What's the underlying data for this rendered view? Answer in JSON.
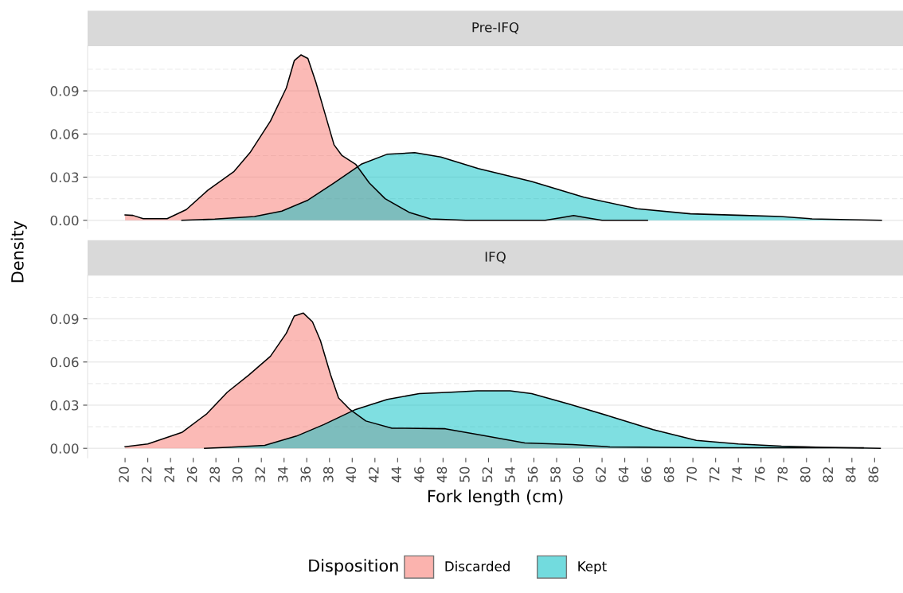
{
  "chart_data": [
    {
      "type": "area",
      "title": "Pre-IFQ",
      "ylabel": "Density",
      "legend_title": "Disposition",
      "legend": "bottom",
      "xlim": [
        16.7,
        88.5
      ],
      "ylim": [
        -0.0056,
        0.121
      ],
      "yticks": [
        {
          "value": 0,
          "label": "0.00"
        },
        {
          "value": 0.03,
          "label": "0.03"
        },
        {
          "value": 0.06,
          "label": "0.06"
        },
        {
          "value": 0.09,
          "label": "0.09"
        }
      ],
      "grid": "y",
      "tick_labels": "y",
      "series": [
        {
          "name": "Discarded",
          "color": "#f8766d",
          "x": [
            20,
            20.7,
            21.6,
            23.7,
            25.4,
            27.3,
            29.6,
            31,
            32.8,
            34.2,
            34.9,
            35.5,
            36.1,
            36.8,
            37.5,
            38.4,
            39.1,
            40.3,
            41.5,
            42.9,
            45,
            46.9,
            50,
            57,
            58.5,
            59.5,
            60.5,
            62,
            66
          ],
          "values": [
            0.0037,
            0.0034,
            0.0011,
            0.0011,
            0.0075,
            0.021,
            0.034,
            0.047,
            0.069,
            0.092,
            0.111,
            0.115,
            0.1125,
            0.096,
            0.077,
            0.0525,
            0.045,
            0.039,
            0.026,
            0.015,
            0.0056,
            0.001,
            0,
            0,
            0.002,
            0.0033,
            0.002,
            0,
            0
          ]
        },
        {
          "name": "Kept",
          "color": "#00bfc4",
          "x": [
            25,
            27.9,
            31.4,
            33.8,
            36.1,
            38.4,
            40.8,
            43.1,
            45.5,
            47.8,
            51.1,
            55.8,
            60.4,
            65.1,
            69.8,
            74.5,
            77.7,
            80.5,
            83.8,
            86.6
          ],
          "values": [
            0,
            0.0008,
            0.0026,
            0.0064,
            0.014,
            0.026,
            0.039,
            0.046,
            0.047,
            0.044,
            0.036,
            0.027,
            0.016,
            0.008,
            0.0045,
            0.0034,
            0.0026,
            0.001,
            0.0004,
            0
          ]
        }
      ]
    },
    {
      "type": "area",
      "title": "IFQ",
      "xlabel": "Fork length (cm)",
      "xlim": [
        16.7,
        88.5
      ],
      "ylim": [
        -0.0066,
        0.12
      ],
      "xticks": [
        20,
        22,
        24,
        26,
        28,
        30,
        32,
        34,
        36,
        38,
        40,
        42,
        44,
        46,
        48,
        50,
        52,
        54,
        56,
        58,
        60,
        62,
        64,
        66,
        68,
        70,
        72,
        74,
        76,
        78,
        80,
        82,
        84,
        86
      ],
      "yticks": [
        {
          "value": 0,
          "label": "0.00"
        },
        {
          "value": 0.03,
          "label": "0.03"
        },
        {
          "value": 0.06,
          "label": "0.06"
        },
        {
          "value": 0.09,
          "label": "0.09"
        }
      ],
      "grid": "y",
      "series": [
        {
          "color": "#f8766d",
          "x": [
            20,
            22,
            25,
            27.2,
            29,
            30.9,
            32.8,
            34.2,
            34.9,
            35.7,
            36.5,
            37.2,
            38.1,
            38.8,
            39.8,
            41.2,
            43.5,
            48.2,
            51.5,
            55.2,
            59.4,
            62.7,
            72,
            85
          ],
          "values": [
            0.0011,
            0.003,
            0.011,
            0.024,
            0.039,
            0.051,
            0.064,
            0.08,
            0.092,
            0.094,
            0.088,
            0.075,
            0.051,
            0.035,
            0.027,
            0.019,
            0.014,
            0.0136,
            0.009,
            0.0037,
            0.0026,
            0.001,
            0.0004,
            0.0004
          ]
        },
        {
          "color": "#00bfc4",
          "x": [
            27,
            29,
            32.3,
            35.1,
            37.5,
            40.3,
            43.1,
            45.9,
            48.7,
            51,
            53.9,
            55.8,
            59,
            62.8,
            66.5,
            70.3,
            74,
            77.8,
            81.5,
            86.5
          ],
          "values": [
            0,
            0.0007,
            0.002,
            0.0085,
            0.0165,
            0.027,
            0.034,
            0.038,
            0.039,
            0.04,
            0.04,
            0.038,
            0.031,
            0.022,
            0.013,
            0.0055,
            0.003,
            0.0015,
            0.0007,
            0
          ]
        }
      ]
    }
  ]
}
